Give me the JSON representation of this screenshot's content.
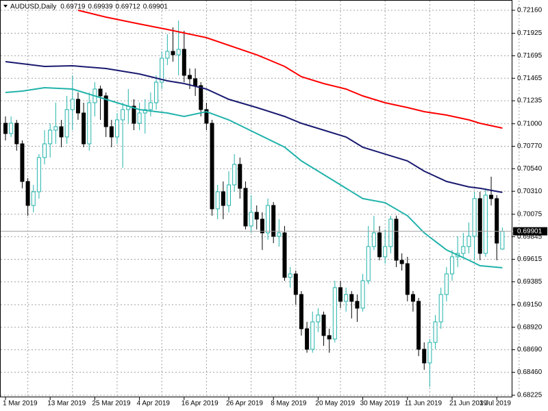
{
  "chart_data": {
    "type": "candlestick",
    "title": "AUDUSD,Daily",
    "categories": [
      "1 Mar 2019",
      null,
      null,
      null,
      null,
      null,
      null,
      null,
      "13 Mar 2019",
      null,
      null,
      null,
      null,
      null,
      null,
      null,
      "25 Mar 2019",
      null,
      null,
      null,
      null,
      null,
      null,
      null,
      "4 Apr 2019",
      null,
      null,
      null,
      null,
      null,
      null,
      null,
      "16 Apr 2019",
      null,
      null,
      null,
      null,
      null,
      null,
      null,
      "26 Apr 2019",
      null,
      null,
      null,
      null,
      null,
      null,
      null,
      "8 May 2019",
      null,
      null,
      null,
      null,
      null,
      null,
      null,
      "20 May 2019",
      null,
      null,
      null,
      null,
      null,
      null,
      null,
      "30 May 2019",
      null,
      null,
      null,
      null,
      null,
      null,
      null,
      "11 Jun 2019",
      null,
      null,
      null,
      null,
      null,
      null,
      null,
      "21 Jun 2019",
      null,
      null,
      null,
      null,
      null,
      null,
      null,
      "3 Jul 2019",
      null
    ],
    "candles": [
      [
        0.71005,
        0.71075,
        0.7083,
        0.709
      ],
      [
        0.709,
        0.71075,
        0.70865,
        0.71005
      ],
      [
        0.71005,
        0.7104,
        0.70725,
        0.70795
      ],
      [
        0.70795,
        0.7083,
        0.7034,
        0.7041
      ],
      [
        0.7041,
        0.70445,
        0.7006,
        0.70165
      ],
      [
        0.70165,
        0.70375,
        0.70095,
        0.70305
      ],
      [
        0.70305,
        0.7069,
        0.70235,
        0.70655
      ],
      [
        0.70655,
        0.70935,
        0.70585,
        0.70795
      ],
      [
        0.70795,
        0.71005,
        0.70655,
        0.70935
      ],
      [
        0.70935,
        0.71215,
        0.70795,
        0.7097
      ],
      [
        0.7097,
        0.7104,
        0.7076,
        0.70865
      ],
      [
        0.70865,
        0.71285,
        0.70795,
        0.71145
      ],
      [
        0.71145,
        0.71495,
        0.70935,
        0.7125
      ],
      [
        0.7125,
        0.7132,
        0.7104,
        0.7111
      ],
      [
        0.7111,
        0.71215,
        0.7076,
        0.70795
      ],
      [
        0.70795,
        0.7132,
        0.70725,
        0.71215
      ],
      [
        0.71215,
        0.71425,
        0.71075,
        0.71355
      ],
      [
        0.71355,
        0.7139,
        0.7104,
        0.71285
      ],
      [
        0.71285,
        0.7132,
        0.70865,
        0.7097
      ],
      [
        0.7097,
        0.7104,
        0.7076,
        0.70865
      ],
      [
        0.70865,
        0.7111,
        0.70795,
        0.7104
      ],
      [
        0.7104,
        0.71215,
        0.7055,
        0.71145
      ],
      [
        0.71145,
        0.71355,
        0.71005,
        0.7118
      ],
      [
        0.7118,
        0.7125,
        0.70935,
        0.71005
      ],
      [
        0.71005,
        0.71215,
        0.70935,
        0.7111
      ],
      [
        0.7111,
        0.7125,
        0.709,
        0.71145
      ],
      [
        0.71145,
        0.7132,
        0.71075,
        0.71215
      ],
      [
        0.71215,
        0.71495,
        0.71145,
        0.71425
      ],
      [
        0.71425,
        0.7174,
        0.71355,
        0.7167
      ],
      [
        0.7167,
        0.71915,
        0.716,
        0.7174
      ],
      [
        0.7174,
        0.71985,
        0.71635,
        0.71705
      ],
      [
        0.71705,
        0.72055,
        0.71495,
        0.71761
      ],
      [
        0.71761,
        0.7195,
        0.71425,
        0.71495
      ],
      [
        0.71495,
        0.71565,
        0.71355,
        0.7146
      ],
      [
        0.7146,
        0.71565,
        0.71285,
        0.7139
      ],
      [
        0.7139,
        0.71425,
        0.71075,
        0.71145
      ],
      [
        0.71145,
        0.71215,
        0.70935,
        0.71005
      ],
      [
        0.71005,
        0.7104,
        0.7006,
        0.7013
      ],
      [
        0.7013,
        0.70375,
        0.70025,
        0.70305
      ],
      [
        0.70305,
        0.7041,
        0.70025,
        0.70165
      ],
      [
        0.70165,
        0.70515,
        0.70095,
        0.70375
      ],
      [
        0.70375,
        0.7069,
        0.70305,
        0.70585
      ],
      [
        0.70585,
        0.70655,
        0.70235,
        0.7034
      ],
      [
        0.7034,
        0.7041,
        0.6992,
        0.69955
      ],
      [
        0.69955,
        0.7027,
        0.69885,
        0.70095
      ],
      [
        0.70095,
        0.70165,
        0.6992,
        0.70025
      ],
      [
        0.70025,
        0.70095,
        0.6971,
        0.69885
      ],
      [
        0.69885,
        0.70235,
        0.69815,
        0.70165
      ],
      [
        0.70165,
        0.702,
        0.6978,
        0.6985
      ],
      [
        0.6985,
        0.70025,
        0.69745,
        0.69885
      ],
      [
        0.69885,
        0.69955,
        0.69395,
        0.6943
      ],
      [
        0.6943,
        0.69535,
        0.69325,
        0.69465
      ],
      [
        0.69465,
        0.695,
        0.6915,
        0.69255
      ],
      [
        0.69255,
        0.6929,
        0.68835,
        0.68905
      ],
      [
        0.68905,
        0.68975,
        0.6866,
        0.68695
      ],
      [
        0.68695,
        0.6908,
        0.6866,
        0.68975
      ],
      [
        0.68975,
        0.69115,
        0.6887,
        0.69045
      ],
      [
        0.69045,
        0.6908,
        0.6873,
        0.68835
      ],
      [
        0.68835,
        0.68905,
        0.6866,
        0.688
      ],
      [
        0.688,
        0.69395,
        0.68765,
        0.69325
      ],
      [
        0.69325,
        0.69395,
        0.69115,
        0.69185
      ],
      [
        0.69185,
        0.69325,
        0.6908,
        0.69255
      ],
      [
        0.69255,
        0.6929,
        0.6901,
        0.69185
      ],
      [
        0.69185,
        0.69255,
        0.68975,
        0.69115
      ],
      [
        0.69115,
        0.69465,
        0.6908,
        0.69395
      ],
      [
        0.69395,
        0.69955,
        0.6936,
        0.69745
      ],
      [
        0.69745,
        0.7006,
        0.6971,
        0.69885
      ],
      [
        0.69885,
        0.69955,
        0.69605,
        0.6964
      ],
      [
        0.6964,
        0.6992,
        0.6957,
        0.69745
      ],
      [
        0.69745,
        0.7006,
        0.69675,
        0.70025
      ],
      [
        0.70025,
        0.7006,
        0.69535,
        0.69605
      ],
      [
        0.69605,
        0.69675,
        0.695,
        0.6957
      ],
      [
        0.6957,
        0.6964,
        0.69185,
        0.69255
      ],
      [
        0.69255,
        0.6929,
        0.6908,
        0.69185
      ],
      [
        0.69185,
        0.6922,
        0.68625,
        0.68695
      ],
      [
        0.68695,
        0.68765,
        0.68485,
        0.68555
      ],
      [
        0.68555,
        0.688,
        0.6831,
        0.68765
      ],
      [
        0.68765,
        0.69045,
        0.68695,
        0.68975
      ],
      [
        0.68975,
        0.69325,
        0.68905,
        0.69255
      ],
      [
        0.69255,
        0.69535,
        0.69185,
        0.69465
      ],
      [
        0.69465,
        0.6971,
        0.69395,
        0.6964
      ],
      [
        0.6964,
        0.6985,
        0.69535,
        0.69675
      ],
      [
        0.69675,
        0.69885,
        0.6964,
        0.69745
      ],
      [
        0.69745,
        0.6999,
        0.69675,
        0.6985
      ],
      [
        0.6985,
        0.70305,
        0.69605,
        0.70235
      ],
      [
        0.70235,
        0.70305,
        0.69605,
        0.69675
      ],
      [
        0.69675,
        0.7034,
        0.6964,
        0.7027
      ],
      [
        0.7027,
        0.70459,
        0.70165,
        0.70235
      ],
      [
        0.70235,
        0.7027,
        0.69605,
        0.6978
      ],
      [
        0.69719,
        0.69939,
        0.69712,
        0.69901
      ]
    ],
    "up_color": "#20b2aa",
    "down_color": "#000000",
    "moving_averages": [
      {
        "color": "#ff0000",
        "x": [
          13,
          18,
          24,
          29,
          36,
          45,
          50,
          53,
          57,
          61,
          64,
          68,
          72,
          75,
          79,
          83,
          85,
          89
        ],
        "values": [
          0.7216,
          0.7209,
          0.7202,
          0.71964,
          0.7188,
          0.71705,
          0.71586,
          0.71481,
          0.71411,
          0.71355,
          0.71285,
          0.71215,
          0.71166,
          0.71124,
          0.71089,
          0.7104,
          0.71005,
          0.70956
        ]
      },
      {
        "color": "#191970",
        "x": [
          0,
          3,
          7,
          12,
          18,
          24,
          29,
          32,
          36,
          40,
          45,
          50,
          53,
          57,
          61,
          64,
          68,
          72,
          75,
          79,
          83,
          85,
          89
        ],
        "values": [
          0.71635,
          0.71614,
          0.71586,
          0.71593,
          0.71565,
          0.71509,
          0.71439,
          0.71411,
          0.71355,
          0.7125,
          0.71166,
          0.71075,
          0.71005,
          0.70935,
          0.70865,
          0.7076,
          0.7069,
          0.7062,
          0.70515,
          0.7041,
          0.70354,
          0.7034,
          0.70298
        ]
      },
      {
        "color": "#20b2aa",
        "x": [
          0,
          3,
          7,
          12,
          18,
          24,
          29,
          32,
          36,
          40,
          45,
          50,
          53,
          57,
          61,
          64,
          68,
          72,
          75,
          79,
          83,
          85,
          89
        ],
        "values": [
          0.7132,
          0.71334,
          0.71369,
          0.71355,
          0.7125,
          0.71145,
          0.7111,
          0.71075,
          0.71124,
          0.7104,
          0.709,
          0.7076,
          0.7062,
          0.7048,
          0.7034,
          0.70235,
          0.70193,
          0.7006,
          0.69885,
          0.6971,
          0.69605,
          0.69549,
          0.69528
        ]
      }
    ],
    "ylim": [
      0.68218,
      0.72251
    ],
    "yticks": [
      {
        "value": 0.7216,
        "label": "0.72160"
      },
      {
        "value": 0.71925,
        "label": "0.71925"
      },
      {
        "value": 0.71695,
        "label": "0.71695"
      },
      {
        "value": 0.71465,
        "label": "0.71465"
      },
      {
        "value": 0.71235,
        "label": "0.71235"
      },
      {
        "value": 0.71,
        "label": "0.71000"
      },
      {
        "value": 0.7077,
        "label": "0.70770"
      },
      {
        "value": 0.7054,
        "label": "0.70540"
      },
      {
        "value": 0.7031,
        "label": "0.70310"
      },
      {
        "value": 0.70075,
        "label": "0.70075"
      },
      {
        "value": 0.69845,
        "label": "0.69845"
      },
      {
        "value": 0.69615,
        "label": "0.69615"
      },
      {
        "value": 0.69385,
        "label": "0.69385"
      },
      {
        "value": 0.6915,
        "label": "0.69150"
      },
      {
        "value": 0.6892,
        "label": "0.68920"
      },
      {
        "value": 0.6869,
        "label": "0.68690"
      },
      {
        "value": 0.6846,
        "label": "0.68460"
      },
      {
        "value": 0.68225,
        "label": "0.68225"
      }
    ],
    "grid": true
  }
}
